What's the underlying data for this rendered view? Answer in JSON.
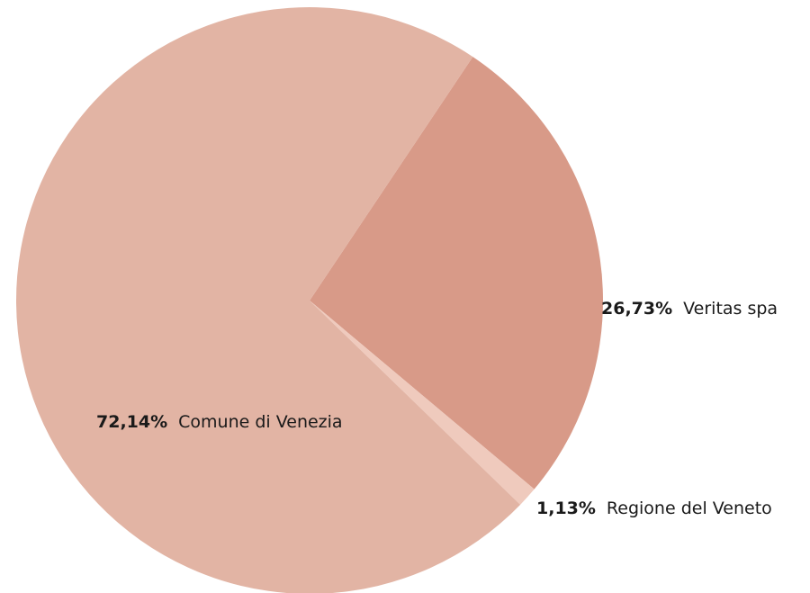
{
  "chart_data": {
    "type": "pie",
    "categories": [
      "Veritas spa",
      "Regione del Veneto",
      "Comune di Venezia"
    ],
    "values": [
      26.73,
      1.13,
      72.14
    ],
    "value_labels": [
      "26,73%",
      "1,13%",
      "72,14%"
    ],
    "colors": [
      "#d89a88",
      "#efcabd",
      "#e2b4a4"
    ]
  }
}
